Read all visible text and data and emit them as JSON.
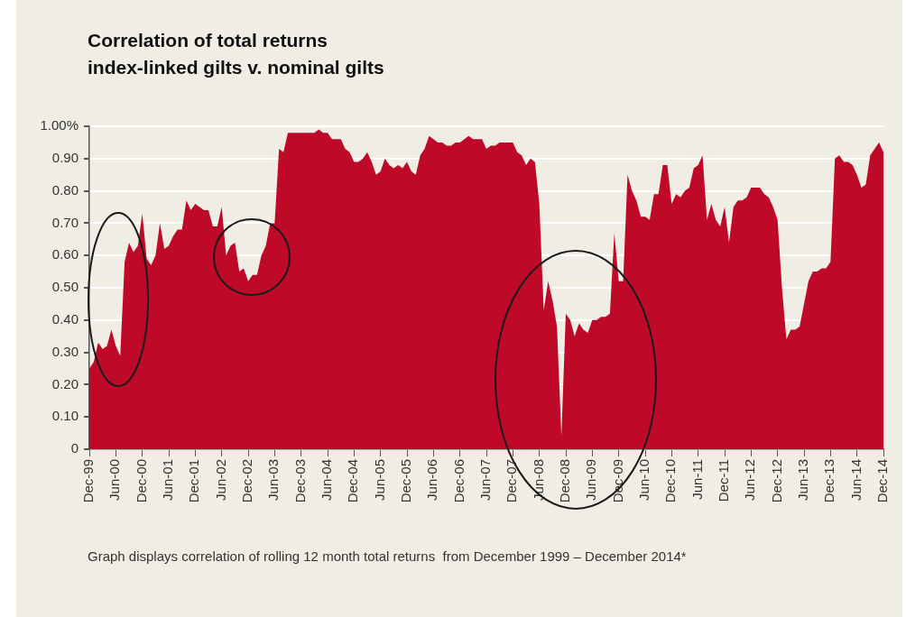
{
  "chart_data": {
    "type": "area",
    "title": "Correlation of total returns\nindex-linked gilts v. nominal gilts",
    "categories": [
      "Dec-99",
      null,
      null,
      null,
      null,
      null,
      "Jun-00",
      null,
      null,
      null,
      null,
      null,
      "Dec-00",
      null,
      null,
      null,
      null,
      null,
      "Jun-01",
      null,
      null,
      null,
      null,
      null,
      "Dec-01",
      null,
      null,
      null,
      null,
      null,
      "Jun-02",
      null,
      null,
      null,
      null,
      null,
      "Dec-02",
      null,
      null,
      null,
      null,
      null,
      "Jun-03",
      null,
      null,
      null,
      null,
      null,
      "Dec-03",
      null,
      null,
      null,
      null,
      null,
      "Jun-04",
      null,
      null,
      null,
      null,
      null,
      "Dec-04",
      null,
      null,
      null,
      null,
      null,
      "Jun-05",
      null,
      null,
      null,
      null,
      null,
      "Dec-05",
      null,
      null,
      null,
      null,
      null,
      "Jun-06",
      null,
      null,
      null,
      null,
      null,
      "Dec-06",
      null,
      null,
      null,
      null,
      null,
      "Jun-07",
      null,
      null,
      null,
      null,
      null,
      "Dec-07",
      null,
      null,
      null,
      null,
      null,
      "Jun-08",
      null,
      null,
      null,
      null,
      null,
      "Dec-08",
      null,
      null,
      null,
      null,
      null,
      "Jun-09",
      null,
      null,
      null,
      null,
      null,
      "Dec-09",
      null,
      null,
      null,
      null,
      null,
      "Jun-10",
      null,
      null,
      null,
      null,
      null,
      "Dec-10",
      null,
      null,
      null,
      null,
      null,
      "Jun-11",
      null,
      null,
      null,
      null,
      null,
      "Dec-11",
      null,
      null,
      null,
      null,
      null,
      "Jun-12",
      null,
      null,
      null,
      null,
      null,
      "Dec-12",
      null,
      null,
      null,
      null,
      null,
      "Jun-13",
      null,
      null,
      null,
      null,
      null,
      "Dec-13",
      null,
      null,
      null,
      null,
      null,
      "Jun-14",
      null,
      null,
      null,
      null,
      null,
      "Dec-14"
    ],
    "values": [
      0.25,
      0.27,
      0.33,
      0.31,
      0.32,
      0.37,
      0.32,
      0.29,
      0.58,
      0.64,
      0.61,
      0.63,
      0.73,
      0.59,
      0.57,
      0.6,
      0.7,
      0.62,
      0.63,
      0.66,
      0.68,
      0.68,
      0.77,
      0.74,
      0.76,
      0.75,
      0.74,
      0.74,
      0.69,
      0.69,
      0.75,
      0.6,
      0.63,
      0.64,
      0.55,
      0.56,
      0.52,
      0.54,
      0.54,
      0.6,
      0.63,
      0.7,
      0.7,
      0.93,
      0.92,
      0.98,
      0.98,
      0.98,
      0.98,
      0.98,
      0.98,
      0.98,
      0.99,
      0.98,
      0.98,
      0.96,
      0.96,
      0.96,
      0.93,
      0.92,
      0.89,
      0.89,
      0.9,
      0.92,
      0.89,
      0.85,
      0.86,
      0.9,
      0.88,
      0.87,
      0.88,
      0.87,
      0.89,
      0.86,
      0.85,
      0.91,
      0.93,
      0.97,
      0.96,
      0.95,
      0.95,
      0.94,
      0.94,
      0.95,
      0.95,
      0.96,
      0.97,
      0.96,
      0.96,
      0.96,
      0.93,
      0.94,
      0.94,
      0.95,
      0.95,
      0.95,
      0.95,
      0.92,
      0.91,
      0.88,
      0.9,
      0.89,
      0.76,
      0.43,
      0.52,
      0.46,
      0.38,
      0.04,
      0.42,
      0.4,
      0.35,
      0.39,
      0.37,
      0.36,
      0.4,
      0.4,
      0.41,
      0.41,
      0.42,
      0.67,
      0.52,
      0.52,
      0.85,
      0.8,
      0.77,
      0.72,
      0.72,
      0.71,
      0.79,
      0.79,
      0.88,
      0.88,
      0.76,
      0.79,
      0.78,
      0.8,
      0.81,
      0.87,
      0.88,
      0.91,
      0.71,
      0.76,
      0.71,
      0.69,
      0.75,
      0.64,
      0.75,
      0.77,
      0.77,
      0.78,
      0.81,
      0.81,
      0.81,
      0.79,
      0.78,
      0.75,
      0.71,
      0.5,
      0.34,
      0.37,
      0.37,
      0.38,
      0.45,
      0.52,
      0.55,
      0.55,
      0.56,
      0.56,
      0.58,
      0.9,
      0.91,
      0.89,
      0.89,
      0.88,
      0.85,
      0.81,
      0.82,
      0.91,
      0.93,
      0.95,
      0.92
    ],
    "color": "#be0a28",
    "ylim": [
      0,
      1
    ],
    "yticks": [
      0,
      {
        "value": 0.1,
        "label": "0.10"
      },
      {
        "value": 0.2,
        "label": "0.20"
      },
      {
        "value": 0.3,
        "label": "0.30"
      },
      {
        "value": 0.4,
        "label": "0.40"
      },
      {
        "value": 0.5,
        "label": "0.50"
      },
      {
        "value": 0.6,
        "label": "0.60"
      },
      {
        "value": 0.7,
        "label": "0.70"
      },
      {
        "value": 0.8,
        "label": "0.80"
      },
      {
        "value": 0.9,
        "label": "0.90"
      },
      {
        "value": 1,
        "label": "1.00%"
      }
    ],
    "grid": "y",
    "annotations": [
      "Graph displays correlation of rolling 12 month total returns  from December 1999 – December 2014*"
    ]
  }
}
